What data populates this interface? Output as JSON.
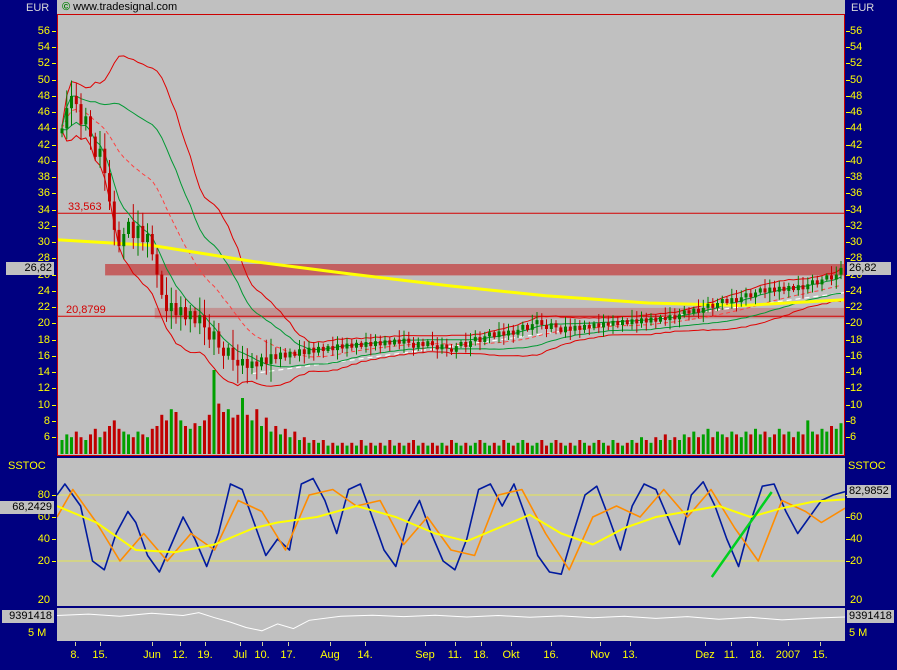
{
  "window": {
    "bg": "#000080",
    "panel_bg": "#c0c0c0"
  },
  "copyright": {
    "symbol": "©",
    "text": "www.tradesignal.com"
  },
  "chart_data": [
    {
      "type": "candlestick",
      "name": "price",
      "unit_label": "EUR",
      "ylim": [
        4,
        58
      ],
      "y_ticks": [
        56,
        54,
        52,
        50,
        48,
        46,
        44,
        42,
        40,
        38,
        36,
        34,
        32,
        30,
        28,
        26,
        24,
        22,
        20,
        18,
        16,
        14,
        12,
        10,
        8,
        6
      ],
      "last_price": 26.82,
      "last_price_label": "26,82",
      "levels": [
        {
          "label": "33,563",
          "value": 33.563
        },
        {
          "label": "20,8799",
          "value": 20.8799
        }
      ],
      "zones": [
        {
          "top": 27.3,
          "bottom": 25.9,
          "start_frac": 0.061,
          "alpha": 0.75
        },
        {
          "top": 21.9,
          "bottom": 20.6,
          "start_frac": 0.124,
          "alpha": 0.35
        }
      ],
      "trendline_white": {
        "x1_frac": 0.247,
        "y1": 13.8,
        "x2_frac": 1.0,
        "y2": 23.8
      },
      "ma_yellow": [
        [
          0,
          30.3
        ],
        [
          0.12,
          29.6
        ],
        [
          0.25,
          27.6
        ],
        [
          0.37,
          26.1
        ],
        [
          0.5,
          24.6
        ],
        [
          0.62,
          23.4
        ],
        [
          0.75,
          22.5
        ],
        [
          0.87,
          22.2
        ],
        [
          1,
          22.9
        ]
      ],
      "indicator_params": {
        "sma_period": 20,
        "band_mult": 2.0,
        "channel_mult": 1.0
      },
      "closes": [
        44,
        46.5,
        48,
        47,
        44.5,
        45.5,
        43,
        40.5,
        41.5,
        38.5,
        35,
        31.5,
        29.5,
        31,
        32.5,
        30.5,
        32,
        30,
        31,
        28.5,
        26,
        23.5,
        21.5,
        22.5,
        21,
        22,
        20.5,
        21.5,
        20,
        21,
        19.5,
        18,
        19,
        17,
        16,
        17,
        15.5,
        14.8,
        15.6,
        14.5,
        15.3,
        14.7,
        15.8,
        15,
        16.2,
        15.6,
        16.4,
        15.8,
        16.5,
        16,
        16.8,
        16.2,
        17,
        16.4,
        17.1,
        16.6,
        17.2,
        16.7,
        17.4,
        16.9,
        17.5,
        17,
        17.6,
        17.1,
        17.7,
        17.2,
        17.8,
        17.3,
        17.9,
        17.4,
        18,
        17.5,
        18.1,
        17.6,
        17,
        17.7,
        17.2,
        17.8,
        17.3,
        16.8,
        17.4,
        16.9,
        16.5,
        17.2,
        17.7,
        17.1,
        17.8,
        18.3,
        17.7,
        18.4,
        18.9,
        18.3,
        19,
        18.5,
        19.1,
        18.6,
        19.2,
        19.8,
        19.2,
        19.9,
        20.4,
        19.8,
        19.3,
        20,
        19.5,
        18.9,
        19.6,
        19.1,
        19.7,
        19.2,
        19.8,
        19.4,
        20,
        19.5,
        20.1,
        19.7,
        20.3,
        19.8,
        20.4,
        19.9,
        20.5,
        20,
        20.6,
        20.1,
        20.7,
        20.2,
        20.8,
        20.4,
        21,
        20.5,
        21.1,
        21.6,
        21.2,
        21.8,
        21.3,
        21.9,
        22.4,
        21.9,
        22.5,
        23,
        22.5,
        23.1,
        22.6,
        23.2,
        23.7,
        23.2,
        23.8,
        24.3,
        23.8,
        24.4,
        23.9,
        24.5,
        24,
        24.6,
        24.1,
        24.7,
        24.2,
        24.8,
        25.3,
        24.8,
        25.4,
        25.9,
        25.4,
        26,
        26.82
      ],
      "volumes": [
        5,
        7,
        6,
        8,
        6,
        5,
        7,
        9,
        6,
        8,
        10,
        12,
        9,
        8,
        7,
        6,
        8,
        7,
        6,
        9,
        10,
        14,
        12,
        16,
        15,
        12,
        10,
        9,
        11,
        10,
        12,
        14,
        30,
        18,
        15,
        16,
        13,
        14,
        20,
        14,
        12,
        16,
        10,
        13,
        8,
        10,
        7,
        9,
        6,
        8,
        5,
        6,
        4,
        5,
        4,
        5,
        3,
        4,
        3,
        4,
        3,
        4,
        3,
        5,
        3,
        4,
        3,
        4,
        3,
        5,
        3,
        4,
        3,
        4,
        5,
        3,
        4,
        3,
        4,
        3,
        4,
        3,
        5,
        4,
        3,
        4,
        3,
        4,
        5,
        4,
        3,
        4,
        3,
        5,
        4,
        3,
        4,
        5,
        4,
        3,
        4,
        5,
        3,
        4,
        5,
        4,
        3,
        4,
        3,
        5,
        4,
        3,
        4,
        5,
        4,
        3,
        5,
        4,
        3,
        4,
        5,
        4,
        6,
        5,
        4,
        6,
        5,
        7,
        5,
        6,
        5,
        7,
        6,
        8,
        6,
        7,
        9,
        6,
        8,
        7,
        6,
        8,
        7,
        6,
        8,
        7,
        9,
        7,
        8,
        6,
        7,
        9,
        7,
        8,
        6,
        8,
        7,
        12,
        8,
        7,
        9,
        8,
        10,
        9,
        11
      ]
    },
    {
      "type": "line",
      "name": "SSTOC",
      "ylim": [
        0,
        100
      ],
      "ticks": [
        80,
        60,
        40,
        20
      ],
      "extra_bottom_tick": "20",
      "hlines": [
        80,
        20
      ],
      "left_value": 68.2429,
      "left_value_label": "68,2429",
      "right_value": 82.9852,
      "right_value_label": "82,9852",
      "series": [
        {
          "name": "stoch-fast",
          "color": "#001a9e",
          "width": 1.6,
          "points": [
            [
              0,
              80
            ],
            [
              0.01,
              90
            ],
            [
              0.03,
              70
            ],
            [
              0.045,
              20
            ],
            [
              0.06,
              12
            ],
            [
              0.075,
              45
            ],
            [
              0.09,
              65
            ],
            [
              0.1,
              55
            ],
            [
              0.115,
              25
            ],
            [
              0.13,
              10
            ],
            [
              0.145,
              35
            ],
            [
              0.16,
              60
            ],
            [
              0.175,
              40
            ],
            [
              0.19,
              15
            ],
            [
              0.205,
              45
            ],
            [
              0.22,
              90
            ],
            [
              0.235,
              85
            ],
            [
              0.25,
              55
            ],
            [
              0.265,
              25
            ],
            [
              0.28,
              40
            ],
            [
              0.295,
              30
            ],
            [
              0.31,
              90
            ],
            [
              0.325,
              95
            ],
            [
              0.34,
              75
            ],
            [
              0.355,
              45
            ],
            [
              0.37,
              85
            ],
            [
              0.385,
              90
            ],
            [
              0.4,
              60
            ],
            [
              0.415,
              30
            ],
            [
              0.43,
              15
            ],
            [
              0.445,
              55
            ],
            [
              0.46,
              75
            ],
            [
              0.475,
              45
            ],
            [
              0.49,
              20
            ],
            [
              0.505,
              12
            ],
            [
              0.52,
              40
            ],
            [
              0.535,
              85
            ],
            [
              0.55,
              90
            ],
            [
              0.565,
              70
            ],
            [
              0.58,
              90
            ],
            [
              0.595,
              60
            ],
            [
              0.61,
              25
            ],
            [
              0.625,
              10
            ],
            [
              0.64,
              8
            ],
            [
              0.655,
              45
            ],
            [
              0.67,
              80
            ],
            [
              0.685,
              88
            ],
            [
              0.7,
              60
            ],
            [
              0.715,
              30
            ],
            [
              0.73,
              70
            ],
            [
              0.745,
              90
            ],
            [
              0.76,
              85
            ],
            [
              0.775,
              60
            ],
            [
              0.79,
              35
            ],
            [
              0.805,
              80
            ],
            [
              0.82,
              92
            ],
            [
              0.835,
              70
            ],
            [
              0.85,
              40
            ],
            [
              0.865,
              15
            ],
            [
              0.88,
              55
            ],
            [
              0.895,
              88
            ],
            [
              0.91,
              90
            ],
            [
              0.925,
              65
            ],
            [
              0.94,
              45
            ],
            [
              0.955,
              60
            ],
            [
              0.97,
              75
            ],
            [
              0.985,
              80
            ],
            [
              1,
              83
            ]
          ]
        },
        {
          "name": "stoch-signal",
          "color": "#ff8c00",
          "width": 1.6,
          "points": [
            [
              0,
              60
            ],
            [
              0.02,
              85
            ],
            [
              0.05,
              55
            ],
            [
              0.08,
              20
            ],
            [
              0.11,
              45
            ],
            [
              0.14,
              20
            ],
            [
              0.17,
              45
            ],
            [
              0.2,
              30
            ],
            [
              0.23,
              75
            ],
            [
              0.26,
              65
            ],
            [
              0.29,
              30
            ],
            [
              0.32,
              80
            ],
            [
              0.35,
              85
            ],
            [
              0.38,
              70
            ],
            [
              0.41,
              75
            ],
            [
              0.44,
              35
            ],
            [
              0.47,
              60
            ],
            [
              0.5,
              30
            ],
            [
              0.53,
              25
            ],
            [
              0.56,
              80
            ],
            [
              0.59,
              85
            ],
            [
              0.62,
              45
            ],
            [
              0.65,
              12
            ],
            [
              0.68,
              60
            ],
            [
              0.71,
              70
            ],
            [
              0.74,
              60
            ],
            [
              0.77,
              85
            ],
            [
              0.8,
              60
            ],
            [
              0.83,
              85
            ],
            [
              0.86,
              50
            ],
            [
              0.89,
              20
            ],
            [
              0.92,
              75
            ],
            [
              0.95,
              65
            ],
            [
              0.97,
              55
            ],
            [
              1,
              68
            ]
          ]
        },
        {
          "name": "stoch-slow",
          "color": "#ffff00",
          "width": 2,
          "points": [
            [
              0,
              70
            ],
            [
              0.05,
              55
            ],
            [
              0.1,
              30
            ],
            [
              0.15,
              28
            ],
            [
              0.2,
              35
            ],
            [
              0.25,
              50
            ],
            [
              0.28,
              55
            ],
            [
              0.33,
              60
            ],
            [
              0.38,
              70
            ],
            [
              0.43,
              60
            ],
            [
              0.48,
              45
            ],
            [
              0.52,
              38
            ],
            [
              0.56,
              50
            ],
            [
              0.6,
              62
            ],
            [
              0.64,
              45
            ],
            [
              0.68,
              35
            ],
            [
              0.72,
              50
            ],
            [
              0.76,
              60
            ],
            [
              0.8,
              65
            ],
            [
              0.84,
              70
            ],
            [
              0.88,
              60
            ],
            [
              0.92,
              68
            ],
            [
              0.96,
              74
            ],
            [
              1,
              76
            ]
          ]
        }
      ],
      "trendline_green": {
        "x1_frac": 0.831,
        "v1": 5.5,
        "x2_frac": 0.907,
        "v2": 82.7,
        "color": "#00d020"
      }
    },
    {
      "type": "line",
      "name": "volume",
      "value": 9391418,
      "value_label": "9391418",
      "scale_label": "5 M",
      "scale_value_m": 5,
      "points": [
        [
          0,
          9.8
        ],
        [
          0.04,
          10.2
        ],
        [
          0.08,
          9.6
        ],
        [
          0.12,
          10.4
        ],
        [
          0.16,
          9.8
        ],
        [
          0.18,
          10.6
        ],
        [
          0.2,
          9.2
        ],
        [
          0.22,
          8
        ],
        [
          0.24,
          6.5
        ],
        [
          0.26,
          5.6
        ],
        [
          0.28,
          7.5
        ],
        [
          0.3,
          6.2
        ],
        [
          0.32,
          8.5
        ],
        [
          0.36,
          9.6
        ],
        [
          0.4,
          9.9
        ],
        [
          0.44,
          9.5
        ],
        [
          0.48,
          9.9
        ],
        [
          0.52,
          9.4
        ],
        [
          0.56,
          9.8
        ],
        [
          0.6,
          9.3
        ],
        [
          0.64,
          9.7
        ],
        [
          0.68,
          9.2
        ],
        [
          0.72,
          9.6
        ],
        [
          0.76,
          9
        ],
        [
          0.8,
          9.5
        ],
        [
          0.84,
          8.8
        ],
        [
          0.88,
          9.3
        ],
        [
          0.92,
          8.6
        ],
        [
          0.96,
          9.1
        ],
        [
          1,
          9.39
        ]
      ]
    }
  ],
  "x_axis": {
    "labels": [
      [
        "8.",
        0.023
      ],
      [
        "15.",
        0.054
      ],
      [
        "Jun",
        0.12
      ],
      [
        "12.",
        0.156
      ],
      [
        "19.",
        0.188
      ],
      [
        "Jul",
        0.232
      ],
      [
        "10.",
        0.26
      ],
      [
        "17.",
        0.293
      ],
      [
        "Aug",
        0.346
      ],
      [
        "14.",
        0.391
      ],
      [
        "Sep",
        0.467
      ],
      [
        "11.",
        0.505
      ],
      [
        "18.",
        0.538
      ],
      [
        "Okt",
        0.576
      ],
      [
        "16.",
        0.627
      ],
      [
        "Nov",
        0.689
      ],
      [
        "13.",
        0.727
      ],
      [
        "Dez",
        0.822
      ],
      [
        "11.",
        0.855
      ],
      [
        "18.",
        0.888
      ],
      [
        "2007",
        0.928
      ],
      [
        "15.",
        0.968
      ]
    ]
  }
}
